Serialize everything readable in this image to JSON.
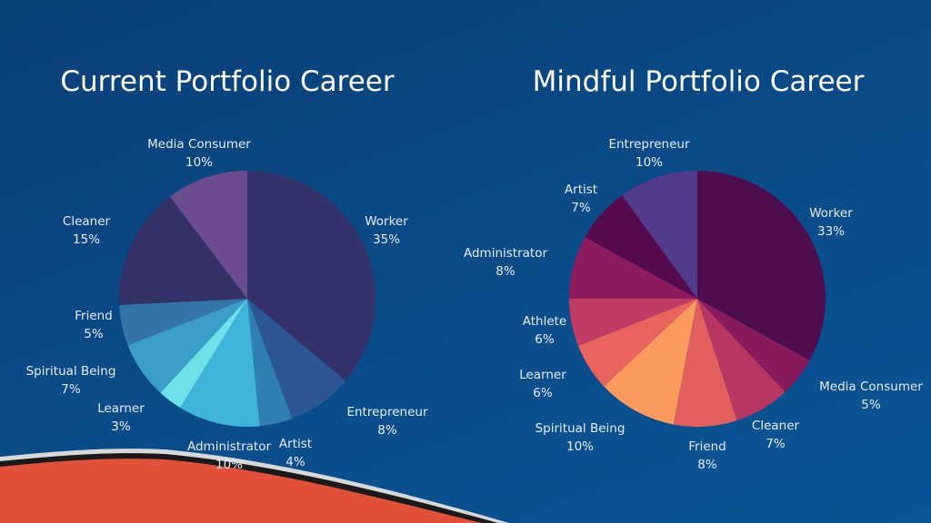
{
  "chart_data": [
    {
      "type": "pie",
      "title": "Current Portfolio Career",
      "slices": [
        {
          "label": "Worker",
          "value": 35,
          "value_text": "35%",
          "color": "#34326a"
        },
        {
          "label": "Entrepreneur",
          "value": 8,
          "value_text": "8%",
          "color": "#2c5694"
        },
        {
          "label": "Artist",
          "value": 4,
          "value_text": "4%",
          "color": "#2f7fb4"
        },
        {
          "label": "Administrator",
          "value": 10,
          "value_text": "10%",
          "color": "#3fb3d9"
        },
        {
          "label": "Learner",
          "value": 3,
          "value_text": "3%",
          "color": "#6ee0ea"
        },
        {
          "label": "Spiritual Being",
          "value": 7,
          "value_text": "7%",
          "color": "#3b9ec9"
        },
        {
          "label": "Friend",
          "value": 5,
          "value_text": "5%",
          "color": "#3574a9"
        },
        {
          "label": "Cleaner",
          "value": 15,
          "value_text": "15%",
          "color": "#333166"
        },
        {
          "label": "Media Consumer",
          "value": 10,
          "value_text": "10%",
          "color": "#6c4c8c"
        }
      ]
    },
    {
      "type": "pie",
      "title": "Mindful Portfolio Career",
      "slices": [
        {
          "label": "Worker",
          "value": 33,
          "value_text": "33%",
          "color": "#4e0d4f"
        },
        {
          "label": "Media Consumer",
          "value": 5,
          "value_text": "5%",
          "color": "#8a1b5b"
        },
        {
          "label": "Cleaner",
          "value": 7,
          "value_text": "7%",
          "color": "#b83662"
        },
        {
          "label": "Friend",
          "value": 8,
          "value_text": "8%",
          "color": "#e15f5d"
        },
        {
          "label": "Spiritual Being",
          "value": 10,
          "value_text": "10%",
          "color": "#fc9a5e"
        },
        {
          "label": "Learner",
          "value": 6,
          "value_text": "6%",
          "color": "#e8645c"
        },
        {
          "label": "Athlete",
          "value": 6,
          "value_text": "6%",
          "color": "#c03c64"
        },
        {
          "label": "Administrator",
          "value": 8,
          "value_text": "8%",
          "color": "#8c1c5e"
        },
        {
          "label": "Artist",
          "value": 7,
          "value_text": "7%",
          "color": "#560b4e"
        },
        {
          "label": "Entrepreneur",
          "value": 10,
          "value_text": "10%",
          "color": "#533a8a"
        }
      ]
    }
  ]
}
